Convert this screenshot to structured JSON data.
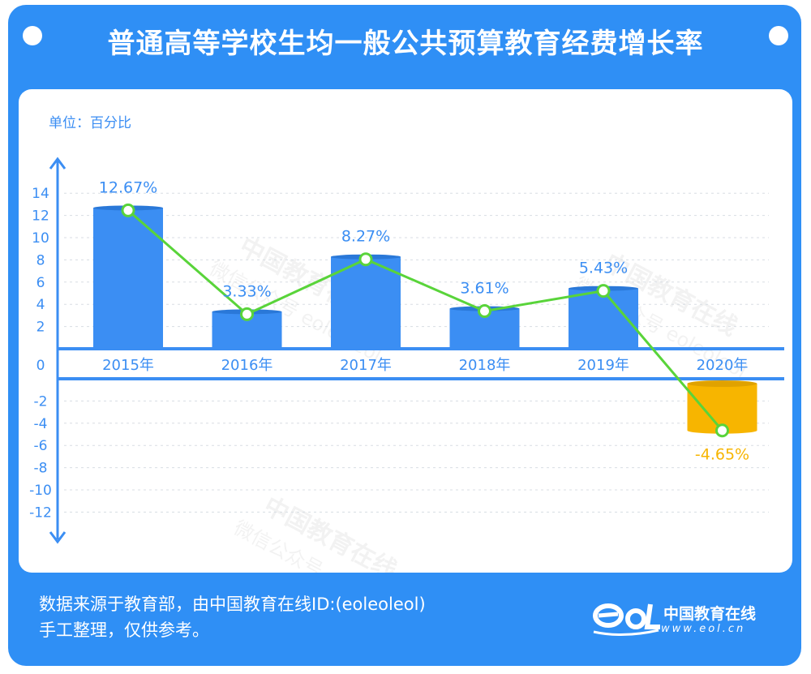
{
  "title": "普通高等学校生均一般公共预算教育经费增长率",
  "unit_label": "单位：百分比",
  "source_line1": "数据来源于教育部，由中国教育在线ID:(eoleoleol)",
  "source_line2": "手工整理，仅供参考。",
  "logo": {
    "mark": "eoL",
    "name": "中国教育在线",
    "url": "www.eol.cn"
  },
  "watermarks": [
    "中国教育在线",
    "微信公众号 eoleoleol"
  ],
  "colors": {
    "background": "#2f8ff5",
    "bar": "#3b8ef3",
    "bar_negative": "#f7b500",
    "line": "#59d43a",
    "axis": "#3b8ef3",
    "label_positive": "#3b8ef3",
    "label_negative": "#f7b500"
  },
  "chart_data": {
    "type": "bar",
    "categories": [
      "2015年",
      "2016年",
      "2017年",
      "2018年",
      "2019年",
      "2020年"
    ],
    "values": [
      12.67,
      3.33,
      8.27,
      3.61,
      5.43,
      -4.65
    ],
    "value_labels": [
      "12.67%",
      "3.33%",
      "8.27%",
      "3.61%",
      "5.43%",
      "-4.65%"
    ],
    "overlay_line": true,
    "y_ticks_positive": [
      "14",
      "12",
      "10",
      "8",
      "6",
      "4",
      "2",
      "0"
    ],
    "y_ticks_negative": [
      "-2",
      "-4",
      "-6",
      "-8",
      "-10",
      "-12"
    ],
    "ylim": [
      -12,
      14
    ],
    "grid": true,
    "title": "普通高等学校生均一般公共预算教育经费增长率",
    "ylabel": "单位：百分比"
  }
}
